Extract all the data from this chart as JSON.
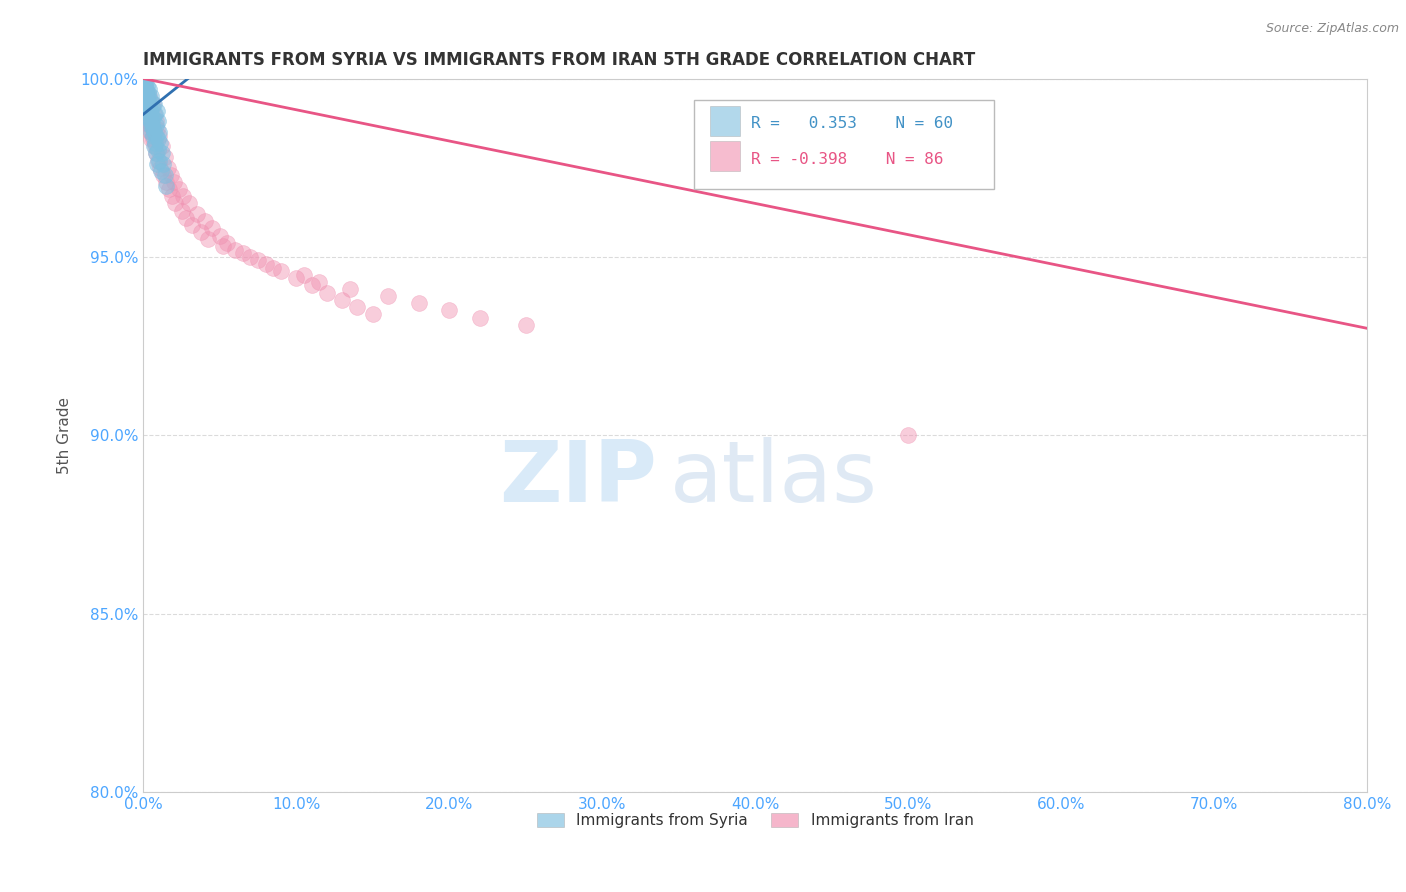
{
  "title": "IMMIGRANTS FROM SYRIA VS IMMIGRANTS FROM IRAN 5TH GRADE CORRELATION CHART",
  "source": "Source: ZipAtlas.com",
  "ylabel": "5th Grade",
  "xlabel": "",
  "xlim": [
    0.0,
    80.0
  ],
  "ylim": [
    80.0,
    100.0
  ],
  "xticks": [
    0.0,
    10.0,
    20.0,
    30.0,
    40.0,
    50.0,
    60.0,
    70.0,
    80.0
  ],
  "yticks": [
    80.0,
    85.0,
    90.0,
    95.0,
    100.0
  ],
  "xtick_labels": [
    "0.0%",
    "10.0%",
    "20.0%",
    "30.0%",
    "40.0%",
    "50.0%",
    "60.0%",
    "70.0%",
    "80.0%"
  ],
  "ytick_labels": [
    "80.0%",
    "85.0%",
    "90.0%",
    "95.0%",
    "100.0%"
  ],
  "syria_R": 0.353,
  "syria_N": 60,
  "iran_R": -0.398,
  "iran_N": 86,
  "syria_color": "#7fbfdf",
  "iran_color": "#f090b0",
  "syria_line_color": "#3070b0",
  "iran_line_color": "#e85585",
  "legend_label_syria": "Immigrants from Syria",
  "legend_label_iran": "Immigrants from Iran",
  "watermark_zip": "ZIP",
  "watermark_atlas": "atlas",
  "background_color": "#ffffff",
  "grid_color": "#cccccc",
  "title_color": "#333333",
  "axis_label_color": "#555555",
  "tick_color": "#4da6ff",
  "syria_line_x0": 0.0,
  "syria_line_y0": 99.0,
  "syria_line_x1": 3.5,
  "syria_line_y1": 100.2,
  "iran_line_x0": 0.0,
  "iran_line_y0": 100.0,
  "iran_line_x1": 80.0,
  "iran_line_y1": 93.0,
  "syria_x": [
    0.05,
    0.08,
    0.1,
    0.12,
    0.15,
    0.18,
    0.2,
    0.22,
    0.25,
    0.28,
    0.3,
    0.32,
    0.35,
    0.38,
    0.4,
    0.42,
    0.45,
    0.48,
    0.5,
    0.55,
    0.6,
    0.65,
    0.7,
    0.75,
    0.8,
    0.85,
    0.9,
    0.95,
    1.0,
    1.1,
    1.2,
    1.3,
    1.4,
    1.5,
    0.06,
    0.09,
    0.11,
    0.14,
    0.17,
    0.21,
    0.24,
    0.27,
    0.31,
    0.34,
    0.37,
    0.41,
    0.44,
    0.47,
    0.52,
    0.58,
    0.63,
    0.68,
    0.72,
    0.78,
    0.83,
    0.88,
    0.93,
    0.98,
    1.05,
    1.15
  ],
  "syria_y": [
    99.8,
    99.5,
    99.9,
    99.6,
    99.3,
    99.7,
    99.4,
    99.1,
    99.8,
    99.5,
    99.2,
    99.6,
    99.3,
    99.0,
    99.7,
    99.4,
    99.1,
    98.8,
    99.5,
    99.2,
    98.9,
    98.6,
    99.3,
    99.0,
    98.7,
    98.4,
    99.1,
    98.8,
    98.5,
    98.2,
    97.9,
    97.6,
    97.3,
    97.0,
    99.9,
    99.7,
    99.8,
    99.5,
    99.6,
    99.3,
    99.4,
    99.1,
    99.2,
    98.9,
    99.0,
    98.7,
    98.8,
    98.5,
    99.0,
    98.7,
    98.4,
    98.1,
    98.5,
    98.2,
    97.9,
    97.6,
    98.3,
    98.0,
    97.7,
    97.4
  ],
  "iran_x": [
    0.05,
    0.1,
    0.15,
    0.2,
    0.25,
    0.3,
    0.35,
    0.4,
    0.45,
    0.5,
    0.6,
    0.7,
    0.8,
    0.9,
    1.0,
    1.2,
    1.4,
    1.6,
    1.8,
    2.0,
    2.3,
    2.6,
    3.0,
    3.5,
    4.0,
    4.5,
    5.0,
    5.5,
    6.0,
    7.0,
    8.0,
    9.0,
    10.0,
    11.0,
    12.0,
    13.0,
    14.0,
    15.0,
    0.08,
    0.12,
    0.18,
    0.22,
    0.28,
    0.32,
    0.38,
    0.42,
    0.48,
    0.55,
    0.65,
    0.75,
    0.85,
    0.95,
    1.1,
    1.3,
    1.5,
    1.7,
    1.9,
    2.1,
    2.5,
    2.8,
    3.2,
    3.8,
    4.2,
    5.2,
    6.5,
    7.5,
    8.5,
    10.5,
    11.5,
    13.5,
    16.0,
    18.0,
    20.0,
    22.0,
    25.0,
    50.0,
    0.06,
    0.09,
    0.13,
    0.17,
    0.23,
    0.27,
    0.33,
    0.37,
    0.43,
    0.47
  ],
  "iran_y": [
    99.8,
    99.7,
    99.5,
    99.6,
    99.4,
    99.2,
    99.5,
    99.3,
    99.1,
    98.9,
    99.3,
    99.0,
    98.8,
    98.6,
    98.4,
    98.1,
    97.8,
    97.5,
    97.3,
    97.1,
    96.9,
    96.7,
    96.5,
    96.2,
    96.0,
    95.8,
    95.6,
    95.4,
    95.2,
    95.0,
    94.8,
    94.6,
    94.4,
    94.2,
    94.0,
    93.8,
    93.6,
    93.4,
    99.9,
    99.8,
    99.6,
    99.5,
    99.3,
    99.2,
    99.0,
    98.9,
    98.7,
    98.5,
    98.3,
    98.1,
    97.9,
    97.7,
    97.5,
    97.3,
    97.1,
    96.9,
    96.7,
    96.5,
    96.3,
    96.1,
    95.9,
    95.7,
    95.5,
    95.3,
    95.1,
    94.9,
    94.7,
    94.5,
    94.3,
    94.1,
    93.9,
    93.7,
    93.5,
    93.3,
    93.1,
    90.0,
    99.7,
    99.6,
    99.4,
    99.3,
    99.1,
    99.0,
    98.8,
    98.7,
    98.5,
    98.3
  ]
}
